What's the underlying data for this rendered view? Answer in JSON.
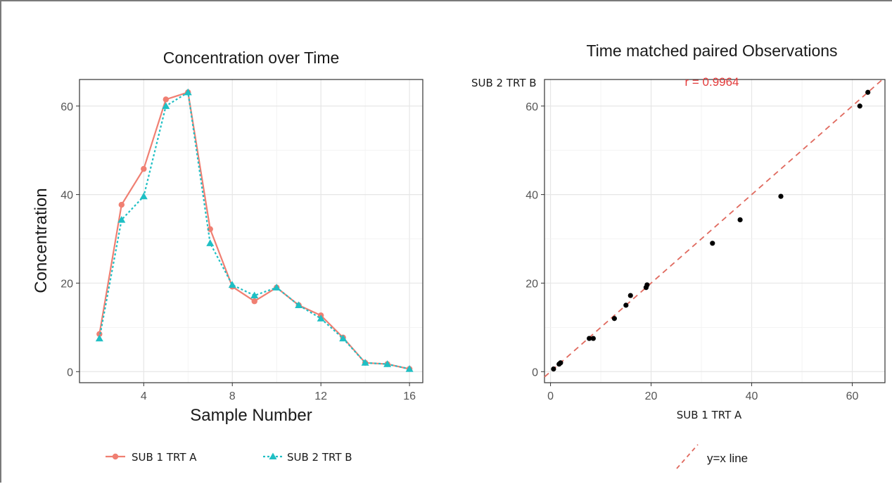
{
  "chart_data": [
    {
      "type": "line",
      "title": "Concentration over Time",
      "xlabel": "Sample Number",
      "ylabel": "Concentration",
      "xlim": [
        1.1,
        16.6
      ],
      "ylim": [
        -2.5,
        66
      ],
      "xticks": [
        4,
        8,
        12,
        16
      ],
      "yticks": [
        0,
        20,
        40,
        60
      ],
      "grid": true,
      "legend_position": "bottom",
      "x": [
        2,
        3,
        4,
        5,
        6,
        7,
        8,
        9,
        10,
        11,
        12,
        13,
        14,
        15,
        16
      ],
      "series": [
        {
          "name": "SUB 1 TRT A",
          "color": "#f07f72",
          "marker": "circle",
          "line_style": "solid",
          "values": [
            8.5,
            37.7,
            45.8,
            61.5,
            63.1,
            32.2,
            19.2,
            15.9,
            19.0,
            15.0,
            12.7,
            7.7,
            2.0,
            1.7,
            0.6
          ]
        },
        {
          "name": "SUB 2 TRT B",
          "color": "#1fbfc4",
          "marker": "triangle",
          "line_style": "dotted",
          "values": [
            7.5,
            34.3,
            39.6,
            60.0,
            63.1,
            29.0,
            19.6,
            17.2,
            19.0,
            15.0,
            12.0,
            7.5,
            2.0,
            1.7,
            0.6
          ]
        }
      ]
    },
    {
      "type": "scatter",
      "title": "Time matched paired Observations",
      "xlabel": "SUB 1 TRT A",
      "ylabel": "SUB 2 TRT B",
      "annotation": "r = 0.9964",
      "annotation_color": "#e23a3a",
      "xlim": [
        -1.2,
        66.5
      ],
      "ylim": [
        -2.5,
        66
      ],
      "xticks": [
        0,
        20,
        40,
        60
      ],
      "yticks": [
        0,
        20,
        40,
        60
      ],
      "grid": true,
      "legend_position": "bottom",
      "points": [
        {
          "x": 0.6,
          "y": 0.6
        },
        {
          "x": 1.7,
          "y": 1.7
        },
        {
          "x": 2.0,
          "y": 2.0
        },
        {
          "x": 7.7,
          "y": 7.5
        },
        {
          "x": 8.5,
          "y": 7.5
        },
        {
          "x": 12.7,
          "y": 12.0
        },
        {
          "x": 15.0,
          "y": 15.0
        },
        {
          "x": 15.9,
          "y": 17.2
        },
        {
          "x": 19.0,
          "y": 19.0
        },
        {
          "x": 19.2,
          "y": 19.6
        },
        {
          "x": 32.2,
          "y": 29.0
        },
        {
          "x": 37.7,
          "y": 34.3
        },
        {
          "x": 45.8,
          "y": 39.6
        },
        {
          "x": 61.5,
          "y": 60.0
        },
        {
          "x": 63.1,
          "y": 63.1
        }
      ],
      "reference_line": {
        "name": "y=x line",
        "color": "#e06a5f",
        "line_style": "dashed"
      }
    }
  ]
}
